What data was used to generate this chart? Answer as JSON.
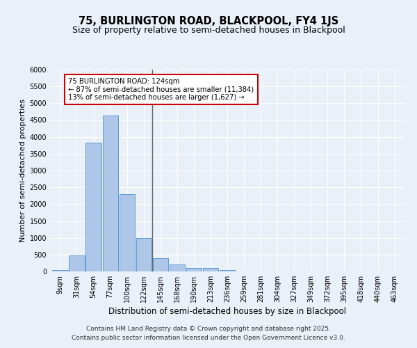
{
  "title": "75, BURLINGTON ROAD, BLACKPOOL, FY4 1JS",
  "subtitle": "Size of property relative to semi-detached houses in Blackpool",
  "xlabel": "Distribution of semi-detached houses by size in Blackpool",
  "ylabel": "Number of semi-detached properties",
  "bins": [
    "9sqm",
    "31sqm",
    "54sqm",
    "77sqm",
    "100sqm",
    "122sqm",
    "145sqm",
    "168sqm",
    "190sqm",
    "213sqm",
    "236sqm",
    "259sqm",
    "281sqm",
    "304sqm",
    "327sqm",
    "349sqm",
    "372sqm",
    "395sqm",
    "418sqm",
    "440sqm",
    "463sqm"
  ],
  "values": [
    50,
    480,
    3820,
    4640,
    2300,
    1000,
    390,
    200,
    100,
    100,
    50,
    0,
    0,
    0,
    0,
    0,
    0,
    0,
    0,
    0,
    0
  ],
  "bar_color": "#aec6e8",
  "bar_edge_color": "#5b9bd5",
  "vline_color": "#666666",
  "annotation_text": "75 BURLINGTON ROAD: 124sqm\n← 87% of semi-detached houses are smaller (11,384)\n13% of semi-detached houses are larger (1,627) →",
  "annotation_box_color": "#ffffff",
  "annotation_box_edge": "#cc0000",
  "ylim": [
    0,
    6000
  ],
  "yticks": [
    0,
    500,
    1000,
    1500,
    2000,
    2500,
    3000,
    3500,
    4000,
    4500,
    5000,
    5500,
    6000
  ],
  "footer_line1": "Contains HM Land Registry data © Crown copyright and database right 2025.",
  "footer_line2": "Contains public sector information licensed under the Open Government Licence v3.0.",
  "background_color": "#eaf0f8",
  "plot_bg_color": "#eaf0f8",
  "title_fontsize": 10.5,
  "subtitle_fontsize": 9,
  "axis_label_fontsize": 8,
  "tick_fontsize": 7,
  "footer_fontsize": 6.5
}
